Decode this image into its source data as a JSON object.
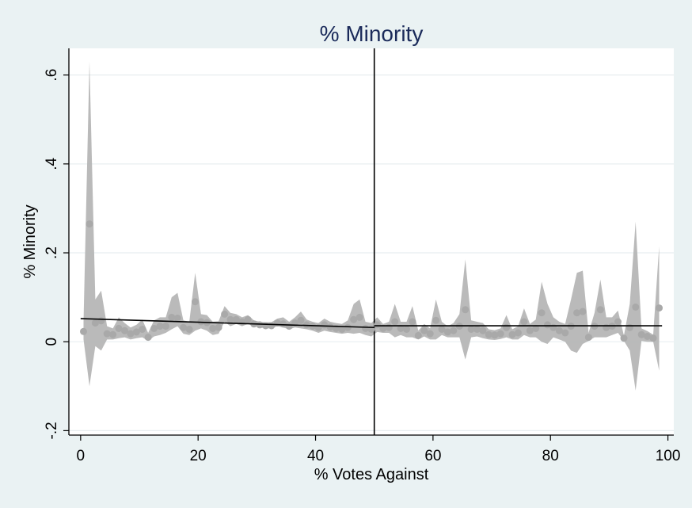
{
  "chart_data": {
    "type": "scatter",
    "title": "% Minority",
    "xlabel": "% Votes Against",
    "ylabel": "% Minority",
    "xlim": [
      -2,
      101
    ],
    "ylim": [
      -0.21,
      0.66
    ],
    "x_ticks": [
      0,
      20,
      40,
      60,
      80,
      100
    ],
    "x_tick_labels": [
      "0",
      "20",
      "40",
      "60",
      "80",
      "100"
    ],
    "y_ticks": [
      -0.2,
      0,
      0.2,
      0.4,
      0.6
    ],
    "y_tick_labels": [
      "-.2",
      "0",
      ".2",
      ".4",
      ".6"
    ],
    "grid": true,
    "cutoff_line_x": 50,
    "fit_lines": [
      {
        "x": [
          0,
          50
        ],
        "y": [
          0.052,
          0.032
        ]
      },
      {
        "x": [
          50,
          99
        ],
        "y": [
          0.036,
          0.036
        ]
      }
    ],
    "series": [
      {
        "x": [
          0.5,
          1.5,
          2.5,
          3.5,
          4.5,
          5.5,
          6.5,
          7.5,
          8.5,
          9.5,
          10.5,
          11.5,
          12.5,
          13.5,
          14.5,
          15.5,
          16.5,
          17.5,
          18.5,
          19.5,
          20.5,
          21.5,
          22.5,
          23.5,
          24.5,
          25.5,
          26.5,
          27.5,
          28.5,
          29.5,
          30.5,
          31.5,
          32.5,
          33.5,
          34.5,
          35.5,
          36.5,
          37.5,
          38.5,
          39.5,
          40.5,
          41.5,
          42.5,
          43.5,
          44.5,
          45.5,
          46.5,
          47.5,
          48.5,
          49.5,
          50.5,
          51.5,
          52.5,
          53.5,
          54.5,
          55.5,
          56.5,
          57.5,
          58.5,
          59.5,
          60.5,
          61.5,
          62.5,
          63.5,
          64.5,
          65.5,
          66.5,
          67.5,
          68.5,
          69.5,
          70.5,
          71.5,
          72.5,
          73.5,
          74.5,
          75.5,
          76.5,
          77.5,
          78.5,
          79.5,
          80.5,
          81.5,
          82.5,
          83.5,
          84.5,
          85.5,
          86.5,
          87.5,
          88.5,
          89.5,
          90.5,
          91.5,
          92.5,
          93.5,
          94.5,
          95.5,
          96.5,
          97.5,
          98.5
        ],
        "y": [
          0.023,
          0.265,
          0.042,
          0.047,
          0.018,
          0.016,
          0.03,
          0.025,
          0.018,
          0.022,
          0.028,
          0.01,
          0.03,
          0.035,
          0.035,
          0.055,
          0.053,
          0.032,
          0.028,
          0.09,
          0.045,
          0.043,
          0.03,
          0.032,
          0.062,
          0.05,
          0.05,
          0.045,
          0.05,
          0.04,
          0.038,
          0.036,
          0.036,
          0.042,
          0.04,
          0.035,
          0.042,
          0.048,
          0.038,
          0.035,
          0.032,
          0.038,
          0.033,
          0.03,
          0.028,
          0.032,
          0.05,
          0.055,
          0.03,
          0.028,
          0.038,
          0.03,
          0.032,
          0.045,
          0.03,
          0.028,
          0.045,
          0.014,
          0.025,
          0.018,
          0.048,
          0.028,
          0.022,
          0.025,
          0.035,
          0.072,
          0.028,
          0.028,
          0.025,
          0.016,
          0.015,
          0.018,
          0.032,
          0.016,
          0.02,
          0.045,
          0.025,
          0.03,
          0.065,
          0.038,
          0.032,
          0.025,
          0.02,
          0.035,
          0.065,
          0.068,
          0.01,
          0.035,
          0.072,
          0.032,
          0.035,
          0.045,
          0.008,
          0.032,
          0.078,
          0.016,
          0.012,
          0.008,
          0.076
        ],
        "ci_low": [
          0.005,
          -0.1,
          -0.01,
          -0.02,
          0.005,
          0.005,
          0.008,
          0.01,
          0.005,
          0.008,
          0.01,
          0.002,
          0.012,
          0.015,
          0.02,
          0.028,
          0.035,
          0.018,
          0.015,
          0.025,
          0.03,
          0.025,
          0.015,
          0.018,
          0.045,
          0.035,
          0.04,
          0.035,
          0.04,
          0.035,
          0.032,
          0.03,
          0.03,
          0.035,
          0.032,
          0.028,
          0.032,
          0.03,
          0.028,
          0.025,
          0.02,
          0.025,
          0.022,
          0.02,
          0.018,
          0.02,
          0.018,
          0.02,
          0.015,
          0.012,
          0.022,
          0.02,
          0.02,
          0.01,
          0.015,
          0.01,
          0.01,
          0.005,
          0.012,
          0.005,
          0.005,
          0.015,
          0.01,
          0.01,
          0.01,
          -0.04,
          0.01,
          0.012,
          0.008,
          0.005,
          0.004,
          0.006,
          0.01,
          0.005,
          0.005,
          0.015,
          0.01,
          0.01,
          0.0,
          -0.005,
          0.01,
          0.005,
          0.0,
          -0.02,
          -0.025,
          -0.005,
          0.002,
          0.01,
          0.01,
          0.01,
          0.015,
          0.02,
          0.002,
          -0.02,
          -0.11,
          0.002,
          0.0,
          0.0,
          -0.065
        ],
        "ci_high": [
          0.045,
          0.63,
          0.095,
          0.115,
          0.035,
          0.03,
          0.055,
          0.042,
          0.032,
          0.038,
          0.05,
          0.02,
          0.048,
          0.055,
          0.055,
          0.1,
          0.11,
          0.048,
          0.045,
          0.155,
          0.062,
          0.06,
          0.045,
          0.046,
          0.08,
          0.065,
          0.062,
          0.055,
          0.06,
          0.048,
          0.045,
          0.044,
          0.044,
          0.052,
          0.055,
          0.045,
          0.055,
          0.068,
          0.05,
          0.045,
          0.042,
          0.052,
          0.045,
          0.042,
          0.04,
          0.048,
          0.085,
          0.095,
          0.045,
          0.042,
          0.055,
          0.04,
          0.045,
          0.085,
          0.045,
          0.045,
          0.08,
          0.025,
          0.04,
          0.03,
          0.095,
          0.045,
          0.035,
          0.042,
          0.062,
          0.185,
          0.048,
          0.045,
          0.042,
          0.028,
          0.026,
          0.03,
          0.06,
          0.028,
          0.035,
          0.075,
          0.04,
          0.05,
          0.135,
          0.085,
          0.055,
          0.045,
          0.04,
          0.095,
          0.155,
          0.16,
          0.02,
          0.065,
          0.14,
          0.055,
          0.055,
          0.07,
          0.014,
          0.085,
          0.27,
          0.03,
          0.024,
          0.016,
          0.215
        ]
      }
    ],
    "colors": {
      "background": "#eaf2f3",
      "plot_background": "#ffffff",
      "ci_band": "#b3b3b3",
      "points": "#a9a9a9",
      "fit_line": "#000000",
      "title": "#1a2a5a"
    }
  }
}
